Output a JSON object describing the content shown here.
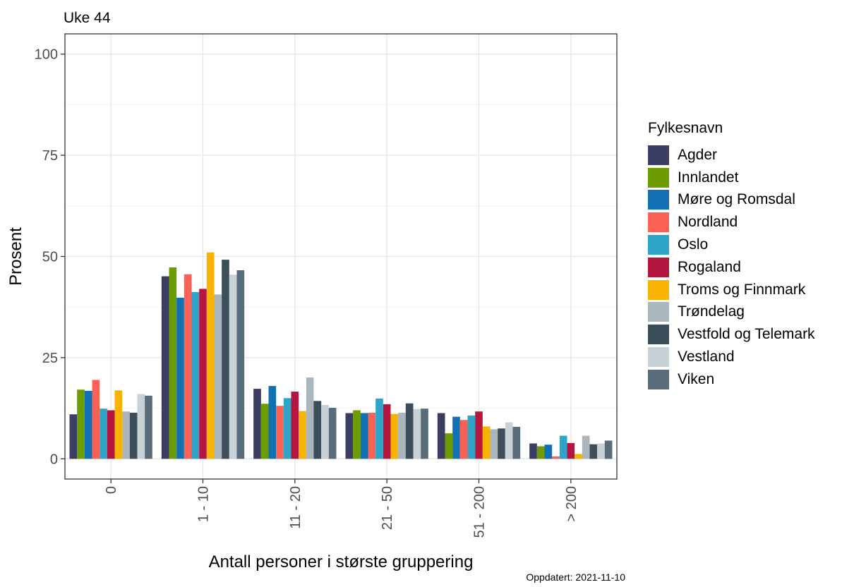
{
  "chart_data": {
    "type": "bar",
    "title": "Uke 44",
    "xlabel": "Antall personer i største gruppering",
    "ylabel": "Prosent",
    "ylim": [
      -5,
      105
    ],
    "yticks": [
      0,
      25,
      50,
      75,
      100
    ],
    "grid": true,
    "legend_title": "Fylkesnavn",
    "legend_position": "right",
    "categories": [
      "0",
      "1 - 10",
      "11 - 20",
      "21 - 50",
      "51 - 200",
      "> 200"
    ],
    "series": [
      {
        "name": "Agder",
        "color": "#3b3e62",
        "values": [
          11.0,
          45.1,
          17.3,
          11.3,
          11.3,
          3.8
        ]
      },
      {
        "name": "Innlandet",
        "color": "#6d9c00",
        "values": [
          17.1,
          47.3,
          13.6,
          12.0,
          6.3,
          3.1
        ]
      },
      {
        "name": "Møre og Romsdal",
        "color": "#1171b3",
        "values": [
          16.8,
          39.8,
          18.0,
          11.3,
          10.4,
          3.5
        ]
      },
      {
        "name": "Nordland",
        "color": "#fc6156",
        "values": [
          19.5,
          45.6,
          13.1,
          11.4,
          9.6,
          0.6
        ]
      },
      {
        "name": "Oslo",
        "color": "#2ea4c6",
        "values": [
          12.4,
          41.2,
          15.0,
          14.9,
          10.7,
          5.7
        ]
      },
      {
        "name": "Rogaland",
        "color": "#b51640",
        "values": [
          12.0,
          42.0,
          16.6,
          13.5,
          11.7,
          3.9
        ]
      },
      {
        "name": "Troms og Finnmark",
        "color": "#f8b200",
        "values": [
          16.9,
          51.0,
          11.8,
          11.1,
          8.0,
          1.2
        ]
      },
      {
        "name": "Trøndelag",
        "color": "#a9b6bc",
        "values": [
          11.7,
          40.6,
          20.1,
          11.4,
          7.3,
          5.7
        ]
      },
      {
        "name": "Vestfold og Telemark",
        "color": "#3c4e5a",
        "values": [
          11.4,
          49.2,
          14.3,
          13.7,
          7.5,
          3.6
        ]
      },
      {
        "name": "Vestland",
        "color": "#c8d1d6",
        "values": [
          16.0,
          45.5,
          13.3,
          12.3,
          9.0,
          3.8
        ]
      },
      {
        "name": "Viken",
        "color": "#586c79",
        "values": [
          15.6,
          46.6,
          12.6,
          12.4,
          7.9,
          4.5
        ]
      }
    ],
    "footnote": "Oppdatert: 2021-11-10"
  }
}
